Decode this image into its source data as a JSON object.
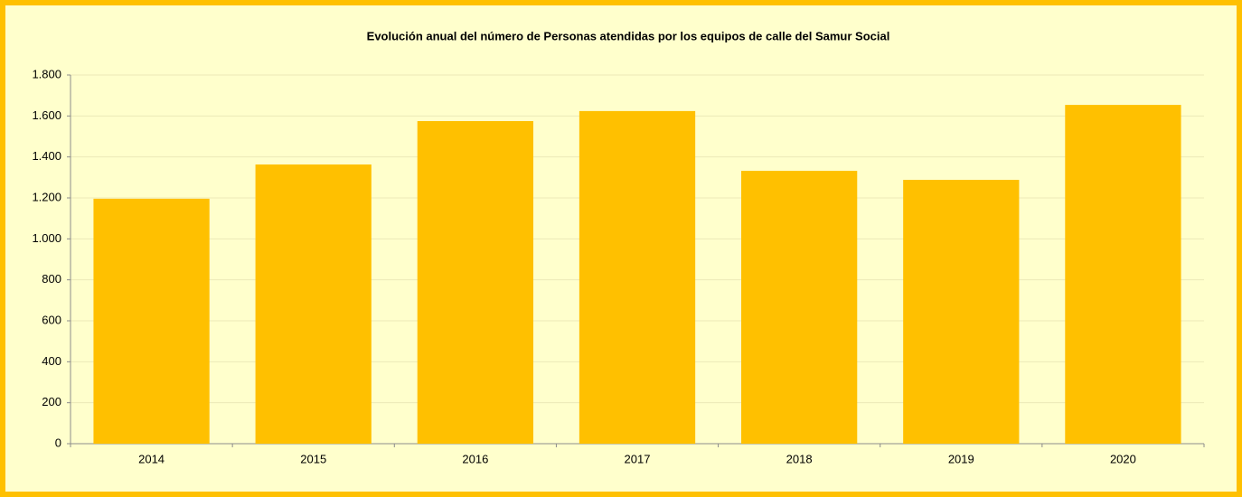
{
  "chart_data": {
    "type": "bar",
    "title": "Evolución anual del número de Personas atendidas por los equipos de calle del Samur Social",
    "categories": [
      "2014",
      "2015",
      "2016",
      "2017",
      "2018",
      "2019",
      "2020"
    ],
    "values": [
      1196,
      1363,
      1575,
      1624,
      1332,
      1288,
      1654
    ],
    "color": "#ffc000",
    "ylim": [
      0,
      1800
    ],
    "yticks": [
      0,
      200,
      400,
      600,
      800,
      {
        "value": 1000,
        "label": "1.000"
      },
      {
        "value": 1200,
        "label": "1.200"
      },
      {
        "value": 1400,
        "label": "1.400"
      },
      {
        "value": 1600,
        "label": "1.600"
      },
      {
        "value": 1800,
        "label": "1.800"
      }
    ],
    "grid": true
  }
}
